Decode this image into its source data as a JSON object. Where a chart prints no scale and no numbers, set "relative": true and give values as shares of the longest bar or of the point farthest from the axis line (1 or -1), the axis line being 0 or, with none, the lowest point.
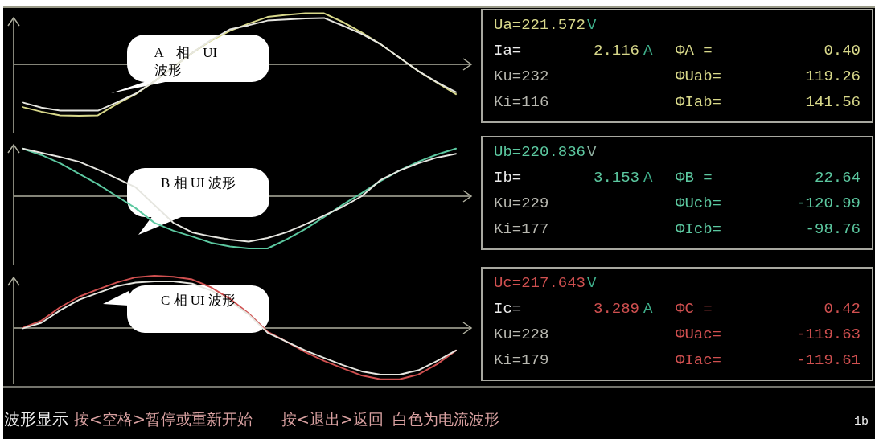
{
  "chart_data": [
    {
      "type": "line",
      "relative": true,
      "categories": [
        null,
        null,
        null,
        null,
        null,
        null,
        null,
        null,
        null,
        null,
        null,
        null,
        null,
        null,
        null,
        null,
        null,
        null,
        null,
        null,
        null,
        null,
        null,
        null
      ],
      "annotations": [
        "A 相 UI 波形"
      ],
      "series": [
        {
          "color": "#d8d88a",
          "values": [
            -0.83,
            -0.92,
            -0.99,
            -1.0,
            -0.99,
            -0.77,
            -0.58,
            -0.33,
            -0.05,
            0.22,
            0.46,
            0.65,
            0.79,
            0.92,
            0.96,
            0.99,
            0.99,
            0.82,
            0.62,
            0.39,
            0.13,
            -0.13,
            -0.36,
            -0.58
          ]
        },
        {
          "color": "#e6e6e0",
          "values": [
            -0.74,
            -0.84,
            -0.9,
            -0.9,
            -0.9,
            -0.74,
            -0.57,
            -0.33,
            -0.05,
            0.22,
            0.47,
            0.68,
            0.76,
            0.85,
            0.87,
            0.89,
            0.9,
            0.75,
            0.59,
            0.39,
            0.13,
            -0.13,
            -0.35,
            -0.54
          ]
        }
      ]
    },
    {
      "type": "other",
      "annotations": [
        "Ua=221.572",
        "V",
        "Ia=",
        "2.116",
        "A",
        "ΦA =",
        "0.40",
        "Ku=232",
        "ΦUab=",
        "119.26",
        "Ki=116",
        "ΦIab=",
        "141.56"
      ],
      "colors": [
        "#d8d88a",
        "#3fae8a",
        "#ececec",
        "#d8d88a",
        "#3fae8a",
        "#d8d88a",
        "#d8d88a",
        "#b8b8b0",
        "#d8d88a",
        "#d8d88a",
        "#b8b8b0",
        "#d8d88a",
        "#d8d88a"
      ]
    },
    {
      "type": "line",
      "relative": true,
      "categories": [
        null,
        null,
        null,
        null,
        null,
        null,
        null,
        null,
        null,
        null,
        null,
        null,
        null,
        null,
        null,
        null,
        null,
        null,
        null,
        null,
        null,
        null,
        null,
        null
      ],
      "annotations": [
        "B 相 UI 波形"
      ],
      "series": [
        {
          "color": "#5cc8a0",
          "values": [
            0.91,
            0.79,
            0.63,
            0.43,
            0.23,
            0,
            -0.23,
            -0.51,
            -0.66,
            -0.77,
            -0.89,
            -0.96,
            -1.0,
            -1.0,
            -0.83,
            -0.63,
            -0.4,
            -0.16,
            0.06,
            0.29,
            0.49,
            0.66,
            0.8,
            0.91
          ]
        },
        {
          "color": "#e6e6e0",
          "values": [
            0.91,
            0.83,
            0.75,
            0.66,
            0.51,
            0.34,
            0.17,
            -0.17,
            -0.51,
            -0.69,
            -0.77,
            -0.83,
            -0.87,
            -0.8,
            -0.69,
            -0.54,
            -0.37,
            -0.2,
            0,
            0.31,
            0.49,
            0.63,
            0.74,
            0.81
          ]
        }
      ]
    },
    {
      "type": "other",
      "annotations": [
        "Ub=220.836",
        "V",
        "Ib=",
        "3.153",
        "A",
        "ΦB =",
        "22.64",
        "Ku=229",
        "ΦUcb=",
        "-120.99",
        "Ki=177",
        "ΦIcb=",
        "-98.76"
      ],
      "colors": [
        "#5cc8a0",
        "#8fb0a0",
        "#ececec",
        "#5cc8a0",
        "#3fae8a",
        "#5cc8a0",
        "#5cc8a0",
        "#b8b8b0",
        "#5cc8a0",
        "#5cc8a0",
        "#b8b8b0",
        "#5cc8a0",
        "#5cc8a0"
      ]
    },
    {
      "type": "line",
      "relative": true,
      "categories": [
        null,
        null,
        null,
        null,
        null,
        null,
        null,
        null,
        null,
        null,
        null,
        null,
        null,
        null,
        null,
        null,
        null,
        null,
        null,
        null,
        null,
        null,
        null,
        null
      ],
      "annotations": [
        "C 相 UI 波形"
      ],
      "series": [
        {
          "color": "#d05050",
          "values": [
            0,
            0.14,
            0.4,
            0.6,
            0.74,
            0.87,
            0.97,
            1.0,
            0.98,
            0.93,
            0.78,
            0.56,
            0.28,
            -0.07,
            -0.26,
            -0.46,
            -0.63,
            -0.77,
            -0.91,
            -0.98,
            -0.98,
            -0.89,
            -0.69,
            -0.43
          ]
        },
        {
          "color": "#e6e6e0",
          "values": [
            -0.01,
            0.1,
            0.34,
            0.54,
            0.67,
            0.8,
            0.87,
            0.89,
            0.89,
            0.85,
            0.72,
            0.52,
            0.26,
            -0.09,
            -0.26,
            -0.43,
            -0.57,
            -0.71,
            -0.83,
            -0.89,
            -0.89,
            -0.81,
            -0.63,
            -0.43
          ]
        }
      ]
    },
    {
      "type": "other",
      "annotations": [
        "Uc=217.643",
        "V",
        "Ic=",
        "3.289",
        "A",
        "ΦC =",
        "0.42",
        "Ku=228",
        "ΦUac=",
        "-119.63",
        "Ki=179",
        "ΦIac=",
        "-119.61"
      ],
      "colors": [
        "#d05050",
        "#3fae8a",
        "#ececec",
        "#d05050",
        "#3fae8a",
        "#d05050",
        "#d05050",
        "#b8b8b0",
        "#d05050",
        "#d05050",
        "#b8b8b0",
        "#d05050",
        "#d05050"
      ]
    },
    {
      "type": "other",
      "annotations": [
        "波形显示",
        "按<空格>暂停或重新开始",
        "按<退出>返回",
        "白色为电流波形",
        "1b"
      ],
      "colors": [
        "#f0f0f0",
        "#d8a0a0",
        "#d8a0a0",
        "#d8a0a0",
        "#f0f0f0"
      ]
    }
  ]
}
